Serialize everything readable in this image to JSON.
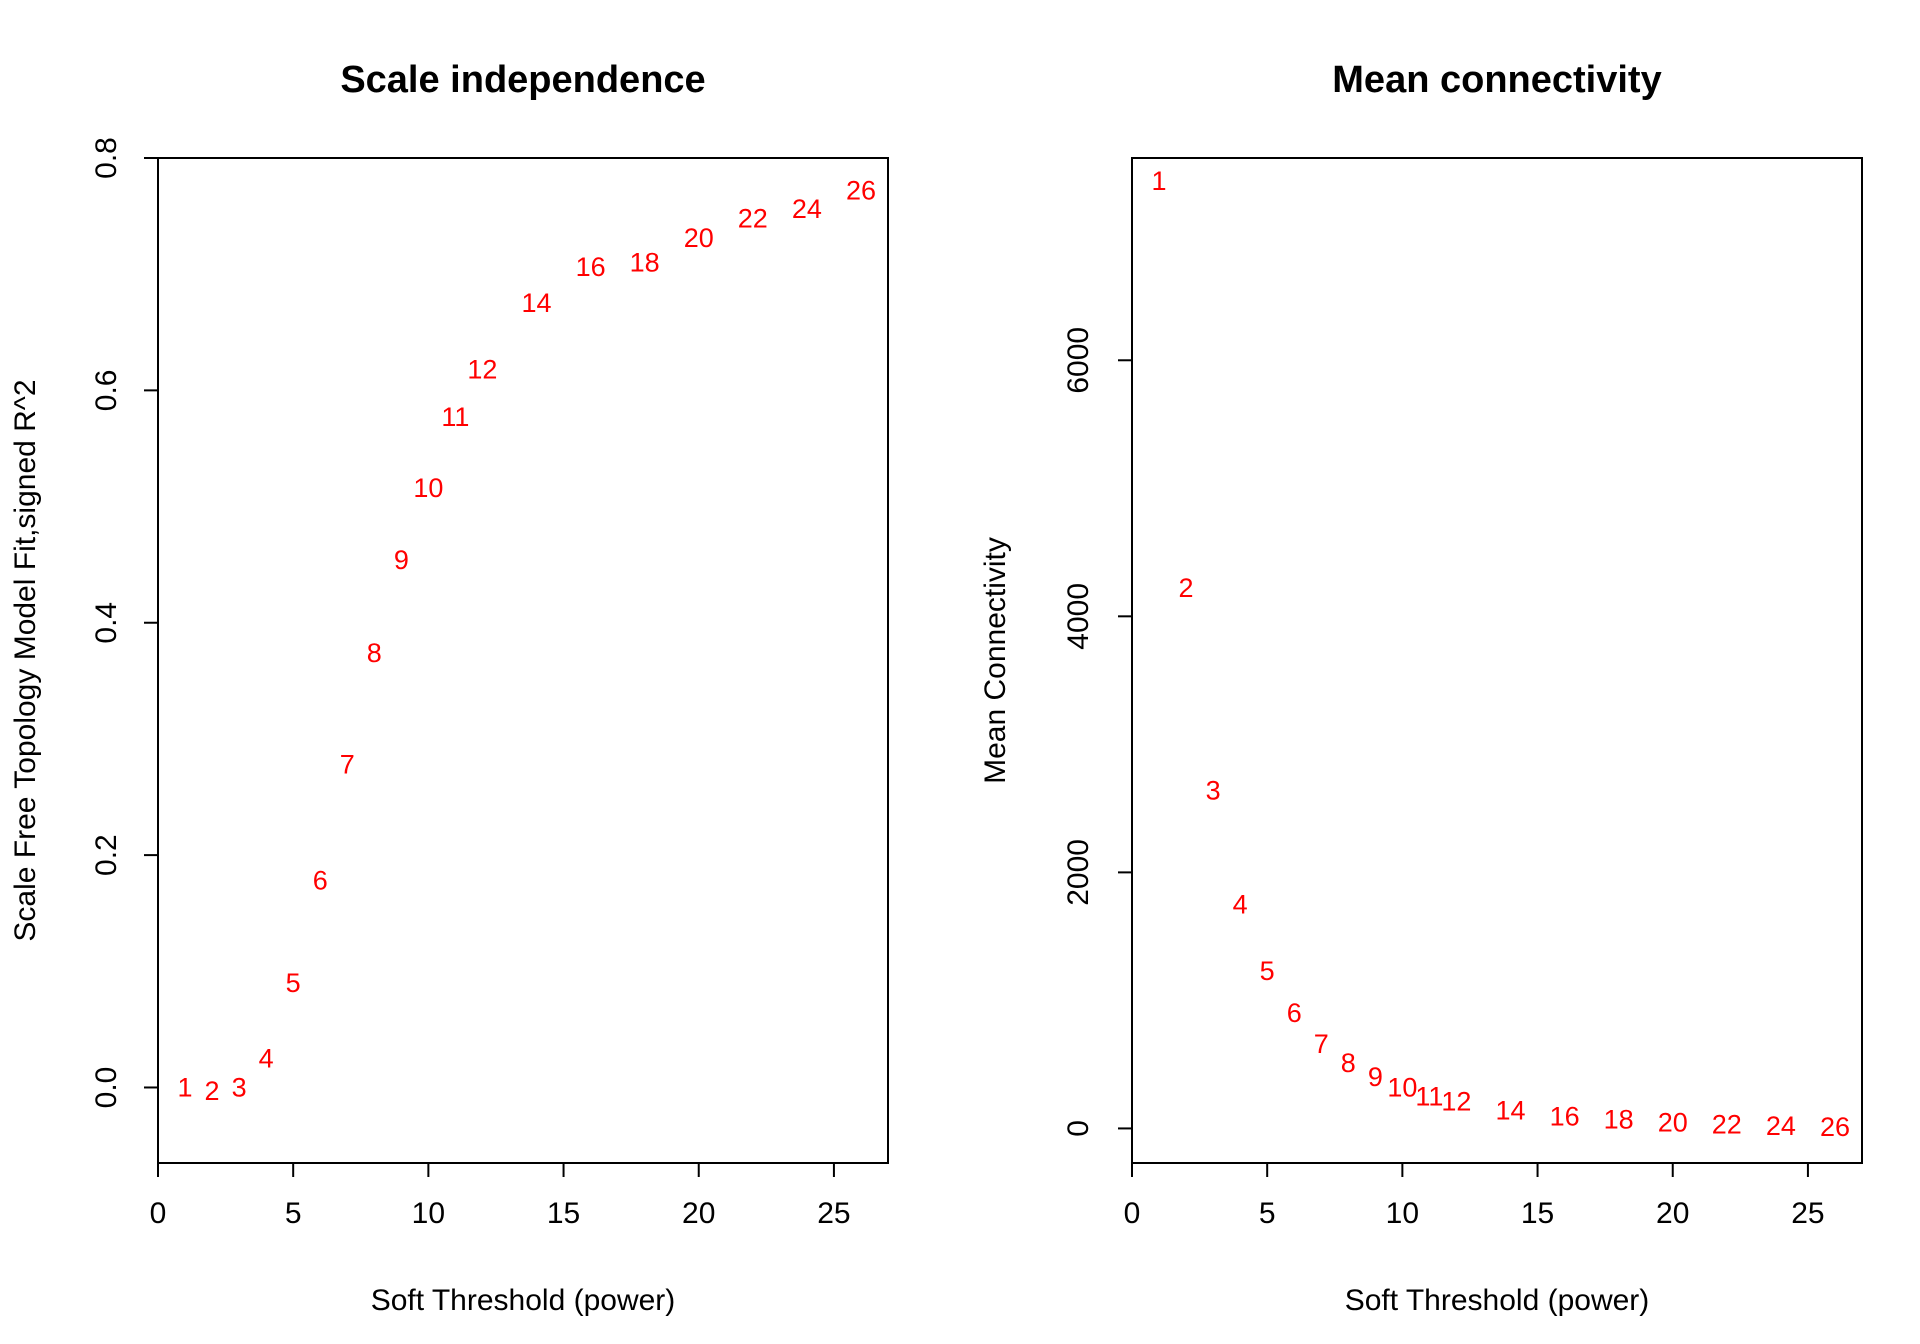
{
  "chart_data": [
    {
      "type": "scatter",
      "title": "Scale independence",
      "xlabel": "Soft Threshold (power)",
      "ylabel": "Scale Free Topology Model Fit,signed R^2",
      "xlim": [
        0,
        27
      ],
      "ylim": [
        -0.065,
        0.8
      ],
      "xticks": [
        0,
        5,
        10,
        15,
        20,
        25
      ],
      "yticks": [
        0.0,
        0.2,
        0.4,
        0.6,
        0.8
      ],
      "ytick_labels": [
        "0.0",
        "0.2",
        "0.4",
        "0.6",
        "0.8"
      ],
      "marker": "text-label",
      "color": "#ff0000",
      "points": [
        {
          "x": 1,
          "y": 0.0,
          "label": "1"
        },
        {
          "x": 2,
          "y": -0.003,
          "label": "2"
        },
        {
          "x": 3,
          "y": 0.0,
          "label": "3"
        },
        {
          "x": 4,
          "y": 0.025,
          "label": "4"
        },
        {
          "x": 5,
          "y": 0.09,
          "label": "5"
        },
        {
          "x": 6,
          "y": 0.178,
          "label": "6"
        },
        {
          "x": 7,
          "y": 0.278,
          "label": "7"
        },
        {
          "x": 8,
          "y": 0.374,
          "label": "8"
        },
        {
          "x": 9,
          "y": 0.454,
          "label": "9"
        },
        {
          "x": 10,
          "y": 0.516,
          "label": "10"
        },
        {
          "x": 11,
          "y": 0.577,
          "label": "11"
        },
        {
          "x": 12,
          "y": 0.618,
          "label": "12"
        },
        {
          "x": 14,
          "y": 0.675,
          "label": "14"
        },
        {
          "x": 16,
          "y": 0.706,
          "label": "16"
        },
        {
          "x": 18,
          "y": 0.71,
          "label": "18"
        },
        {
          "x": 20,
          "y": 0.731,
          "label": "20"
        },
        {
          "x": 22,
          "y": 0.748,
          "label": "22"
        },
        {
          "x": 24,
          "y": 0.756,
          "label": "24"
        },
        {
          "x": 26,
          "y": 0.772,
          "label": "26"
        }
      ]
    },
    {
      "type": "scatter",
      "title": "Mean connectivity",
      "xlabel": "Soft Threshold (power)",
      "ylabel": "Mean Connectivity",
      "xlim": [
        0,
        27
      ],
      "ylim": [
        -270,
        7580
      ],
      "xticks": [
        0,
        5,
        10,
        15,
        20,
        25
      ],
      "yticks": [
        0,
        2000,
        4000,
        6000
      ],
      "ytick_labels": [
        "0",
        "2000",
        "4000",
        "6000"
      ],
      "marker": "text-label",
      "color": "#ff0000",
      "points": [
        {
          "x": 1,
          "y": 7400,
          "label": "1"
        },
        {
          "x": 2,
          "y": 4220,
          "label": "2"
        },
        {
          "x": 3,
          "y": 2640,
          "label": "3"
        },
        {
          "x": 4,
          "y": 1750,
          "label": "4"
        },
        {
          "x": 5,
          "y": 1230,
          "label": "5"
        },
        {
          "x": 6,
          "y": 900,
          "label": "6"
        },
        {
          "x": 7,
          "y": 660,
          "label": "7"
        },
        {
          "x": 8,
          "y": 510,
          "label": "8"
        },
        {
          "x": 9,
          "y": 400,
          "label": "9"
        },
        {
          "x": 10,
          "y": 320,
          "label": "10"
        },
        {
          "x": 11,
          "y": 250,
          "label": "11"
        },
        {
          "x": 12,
          "y": 210,
          "label": "12"
        },
        {
          "x": 14,
          "y": 140,
          "label": "14"
        },
        {
          "x": 16,
          "y": 95,
          "label": "16"
        },
        {
          "x": 18,
          "y": 70,
          "label": "18"
        },
        {
          "x": 20,
          "y": 45,
          "label": "20"
        },
        {
          "x": 22,
          "y": 30,
          "label": "22"
        },
        {
          "x": 24,
          "y": 20,
          "label": "24"
        },
        {
          "x": 26,
          "y": 10,
          "label": "26"
        }
      ]
    }
  ]
}
